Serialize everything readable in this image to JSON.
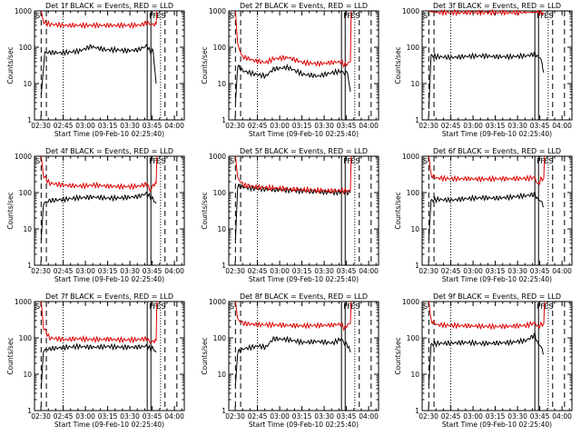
{
  "figure": {
    "title_template": "Det {n}f BLACK = Events, RED = LLD",
    "xlabel": "Start Time (09-Feb-10 02:25:40)",
    "ylabel": "Counts/sec",
    "x_tick_labels": [
      "02:30",
      "02:45",
      "03:00",
      "03:15",
      "03:30",
      "03:45",
      "04:00"
    ],
    "x_ticks_min": [
      4.33,
      19.33,
      34.33,
      49.33,
      64.33,
      79.33,
      94.33
    ],
    "y_tick_labels": [
      "1",
      "10",
      "100",
      "1000"
    ],
    "flag_labels": [
      "F",
      "F",
      "ES"
    ],
    "colors": {
      "events": "#000000",
      "lld": "#dd0000",
      "axes": "#000000"
    }
  },
  "chart_data": [
    {
      "type": "line",
      "title": "Det 1f BLACK = Events, RED = LLD",
      "xlabel": "Start Time (09-Feb-10 02:25:40)",
      "ylabel": "Counts/sec",
      "x_unit": "minutes since 02:25:40",
      "xlim": [
        0,
        101
      ],
      "ylim": [
        1,
        1000
      ],
      "yscale": "log",
      "series": [
        {
          "name": "Events",
          "color": "#000000",
          "x": [
            4.5,
            7,
            10,
            18,
            30,
            38,
            48,
            55,
            62,
            70,
            76,
            78,
            80,
            82
          ],
          "y": [
            5,
            70,
            72,
            70,
            78,
            105,
            85,
            85,
            80,
            85,
            110,
            75,
            80,
            10
          ]
        },
        {
          "name": "LLD",
          "color": "#dd0000",
          "x": [
            4.5,
            6,
            10,
            20,
            35,
            50,
            65,
            72,
            76,
            78,
            80,
            82,
            82.5
          ],
          "y": [
            1000,
            500,
            430,
            400,
            400,
            400,
            400,
            410,
            480,
            430,
            420,
            440,
            1000
          ]
        }
      ],
      "vlines_dashed_min": [
        8,
        88,
        96
      ],
      "vlines_dotted_min": [
        19.3,
        85
      ],
      "vlines_solid_min": [
        76,
        78.5
      ]
    },
    {
      "type": "line",
      "title": "Det 2f BLACK = Events, RED = LLD",
      "xlabel": "Start Time (09-Feb-10 02:25:40)",
      "ylabel": "Counts/sec",
      "x_unit": "minutes since 02:25:40",
      "xlim": [
        0,
        101
      ],
      "ylim": [
        1,
        1000
      ],
      "yscale": "log",
      "series": [
        {
          "name": "Events",
          "color": "#000000",
          "x": [
            4.5,
            6,
            10,
            18,
            25,
            30,
            40,
            50,
            60,
            70,
            76,
            78,
            80,
            82
          ],
          "y": [
            3,
            30,
            22,
            18,
            16,
            25,
            28,
            18,
            16,
            20,
            22,
            19,
            20,
            6
          ]
        },
        {
          "name": "LLD",
          "color": "#dd0000",
          "x": [
            4.5,
            6,
            9,
            18,
            25,
            30,
            40,
            50,
            60,
            70,
            76,
            78,
            80,
            82,
            82.5
          ],
          "y": [
            1000,
            120,
            55,
            42,
            38,
            48,
            52,
            38,
            35,
            38,
            40,
            32,
            35,
            40,
            1000
          ]
        }
      ],
      "vlines_dashed_min": [
        8,
        88,
        96
      ],
      "vlines_dotted_min": [
        19.3,
        85
      ],
      "vlines_solid_min": [
        76,
        78.5
      ]
    },
    {
      "type": "line",
      "title": "Det 3f BLACK = Events, RED = LLD",
      "xlabel": "Start Time (09-Feb-10 02:25:40)",
      "ylabel": "Counts/sec",
      "x_unit": "minutes since 02:25:40",
      "xlim": [
        0,
        101
      ],
      "ylim": [
        1,
        1000
      ],
      "yscale": "log",
      "series": [
        {
          "name": "Events",
          "color": "#000000",
          "x": [
            4.5,
            6,
            10,
            20,
            30,
            40,
            50,
            60,
            70,
            76,
            78,
            80,
            82
          ],
          "y": [
            2,
            60,
            55,
            52,
            56,
            58,
            55,
            55,
            58,
            65,
            55,
            50,
            20
          ]
        },
        {
          "name": "LLD",
          "color": "#dd0000",
          "x": [
            4.5,
            6,
            10,
            30,
            50,
            70,
            76,
            78,
            80,
            82
          ],
          "y": [
            1000,
            950,
            900,
            900,
            900,
            900,
            920,
            900,
            880,
            900
          ]
        }
      ],
      "vlines_dashed_min": [
        8,
        88,
        96
      ],
      "vlines_dotted_min": [
        19.3,
        85
      ],
      "vlines_solid_min": [
        76,
        78.5
      ]
    },
    {
      "type": "line",
      "title": "Det 4f BLACK = Events, RED = LLD",
      "xlabel": "Start Time (09-Feb-10 02:25:40)",
      "ylabel": "Counts/sec",
      "x_unit": "minutes since 02:25:40",
      "xlim": [
        0,
        101
      ],
      "ylim": [
        1,
        1000
      ],
      "yscale": "log",
      "series": [
        {
          "name": "Events",
          "color": "#000000",
          "x": [
            4.5,
            6,
            10,
            20,
            30,
            40,
            50,
            60,
            70,
            76,
            78,
            80,
            82
          ],
          "y": [
            5,
            50,
            60,
            65,
            72,
            75,
            70,
            72,
            78,
            95,
            75,
            65,
            50
          ]
        },
        {
          "name": "LLD",
          "color": "#dd0000",
          "x": [
            4.5,
            6,
            10,
            20,
            30,
            40,
            50,
            60,
            70,
            76,
            78,
            80,
            82,
            82.5
          ],
          "y": [
            1000,
            300,
            180,
            160,
            150,
            160,
            150,
            145,
            150,
            170,
            110,
            160,
            180,
            1000
          ]
        }
      ],
      "vlines_dashed_min": [
        8,
        88,
        96
      ],
      "vlines_dotted_min": [
        19.3,
        85
      ],
      "vlines_solid_min": [
        76,
        78.5
      ]
    },
    {
      "type": "line",
      "title": "Det 5f BLACK = Events, RED = LLD",
      "xlabel": "Start Time (09-Feb-10 02:25:40)",
      "ylabel": "Counts/sec",
      "x_unit": "minutes since 02:25:40",
      "xlim": [
        0,
        101
      ],
      "ylim": [
        1,
        1000
      ],
      "yscale": "log",
      "series": [
        {
          "name": "Events",
          "color": "#000000",
          "x": [
            4.5,
            6,
            10,
            20,
            30,
            40,
            50,
            60,
            70,
            76,
            80,
            82
          ],
          "y": [
            5,
            150,
            140,
            125,
            120,
            115,
            110,
            105,
            100,
            102,
            100,
            98
          ]
        },
        {
          "name": "LLD",
          "color": "#dd0000",
          "x": [
            4.5,
            6,
            10,
            20,
            30,
            40,
            50,
            60,
            70,
            76,
            80,
            82,
            82.5
          ],
          "y": [
            1000,
            250,
            160,
            140,
            135,
            125,
            120,
            115,
            112,
            115,
            110,
            115,
            1000
          ]
        }
      ],
      "vlines_dashed_min": [
        8,
        88,
        96
      ],
      "vlines_dotted_min": [
        19.3,
        85
      ],
      "vlines_solid_min": [
        76,
        78.5
      ]
    },
    {
      "type": "line",
      "title": "Det 6f BLACK = Events, RED = LLD",
      "xlabel": "Start Time (09-Feb-10 02:25:40)",
      "ylabel": "Counts/sec",
      "x_unit": "minutes since 02:25:40",
      "xlim": [
        0,
        101
      ],
      "ylim": [
        1,
        1000
      ],
      "yscale": "log",
      "series": [
        {
          "name": "Events",
          "color": "#000000",
          "x": [
            4.5,
            6,
            10,
            20,
            30,
            40,
            50,
            60,
            70,
            76,
            78,
            80,
            82
          ],
          "y": [
            5,
            60,
            65,
            62,
            68,
            72,
            70,
            75,
            82,
            90,
            65,
            60,
            40
          ]
        },
        {
          "name": "LLD",
          "color": "#dd0000",
          "x": [
            4.5,
            6,
            10,
            20,
            30,
            40,
            50,
            60,
            70,
            76,
            78,
            80,
            82,
            82.5
          ],
          "y": [
            1000,
            300,
            250,
            240,
            240,
            235,
            240,
            240,
            245,
            260,
            160,
            230,
            250,
            1000
          ]
        }
      ],
      "vlines_dashed_min": [
        8,
        88,
        96
      ],
      "vlines_dotted_min": [
        19.3,
        85
      ],
      "vlines_solid_min": [
        76,
        78.5
      ]
    },
    {
      "type": "line",
      "title": "Det 7f BLACK = Events, RED = LLD",
      "xlabel": "Start Time (09-Feb-10 02:25:40)",
      "ylabel": "Counts/sec",
      "x_unit": "minutes since 02:25:40",
      "xlim": [
        0,
        101
      ],
      "ylim": [
        1,
        1000
      ],
      "yscale": "log",
      "series": [
        {
          "name": "Events",
          "color": "#000000",
          "x": [
            4.5,
            6,
            10,
            20,
            30,
            40,
            50,
            60,
            70,
            76,
            78,
            80,
            82
          ],
          "y": [
            4,
            45,
            50,
            55,
            58,
            55,
            58,
            55,
            56,
            60,
            50,
            52,
            40
          ]
        },
        {
          "name": "LLD",
          "color": "#dd0000",
          "x": [
            4.5,
            6,
            10,
            20,
            30,
            40,
            50,
            60,
            70,
            76,
            78,
            80,
            82,
            82.5
          ],
          "y": [
            1000,
            200,
            100,
            90,
            95,
            90,
            92,
            88,
            90,
            95,
            75,
            80,
            85,
            1000
          ]
        }
      ],
      "vlines_dashed_min": [
        8,
        88,
        96
      ],
      "vlines_dotted_min": [
        19.3,
        85
      ],
      "vlines_solid_min": [
        76,
        78.5
      ]
    },
    {
      "type": "line",
      "title": "Det 8f BLACK = Events, RED = LLD",
      "xlabel": "Start Time (09-Feb-10 02:25:40)",
      "ylabel": "Counts/sec",
      "x_unit": "minutes since 02:25:40",
      "xlim": [
        0,
        101
      ],
      "ylim": [
        1,
        1000
      ],
      "yscale": "log",
      "series": [
        {
          "name": "Events",
          "color": "#000000",
          "x": [
            4.5,
            6,
            10,
            20,
            25,
            30,
            40,
            50,
            60,
            70,
            76,
            78,
            80,
            82
          ],
          "y": [
            5,
            40,
            50,
            60,
            55,
            95,
            90,
            75,
            80,
            72,
            95,
            70,
            65,
            40
          ]
        },
        {
          "name": "LLD",
          "color": "#dd0000",
          "x": [
            4.5,
            6,
            10,
            20,
            30,
            40,
            50,
            60,
            70,
            76,
            78,
            80,
            82,
            82.5
          ],
          "y": [
            1000,
            320,
            250,
            230,
            230,
            220,
            215,
            220,
            225,
            240,
            180,
            230,
            250,
            1000
          ]
        }
      ],
      "vlines_dashed_min": [
        8,
        88,
        96
      ],
      "vlines_dotted_min": [
        19.3,
        85
      ],
      "vlines_solid_min": [
        76,
        78.5
      ]
    },
    {
      "type": "line",
      "title": "Det 9f BLACK = Events, RED = LLD",
      "xlabel": "Start Time (09-Feb-10 02:25:40)",
      "ylabel": "Counts/sec",
      "x_unit": "minutes since 02:25:40",
      "xlim": [
        0,
        101
      ],
      "ylim": [
        1,
        1000
      ],
      "yscale": "log",
      "series": [
        {
          "name": "Events",
          "color": "#000000",
          "x": [
            4.5,
            6,
            10,
            20,
            30,
            40,
            50,
            60,
            70,
            76,
            78,
            80,
            82
          ],
          "y": [
            5,
            65,
            70,
            72,
            75,
            70,
            72,
            75,
            85,
            120,
            70,
            60,
            35
          ]
        },
        {
          "name": "LLD",
          "color": "#dd0000",
          "x": [
            4.5,
            6,
            10,
            20,
            30,
            40,
            50,
            60,
            70,
            76,
            78,
            80,
            82,
            82.5
          ],
          "y": [
            1000,
            300,
            230,
            220,
            215,
            210,
            205,
            210,
            220,
            260,
            200,
            230,
            250,
            1000
          ]
        }
      ],
      "vlines_dashed_min": [
        8,
        88,
        96
      ],
      "vlines_dotted_min": [
        19.3,
        85
      ],
      "vlines_solid_min": [
        76,
        78.5
      ]
    }
  ]
}
